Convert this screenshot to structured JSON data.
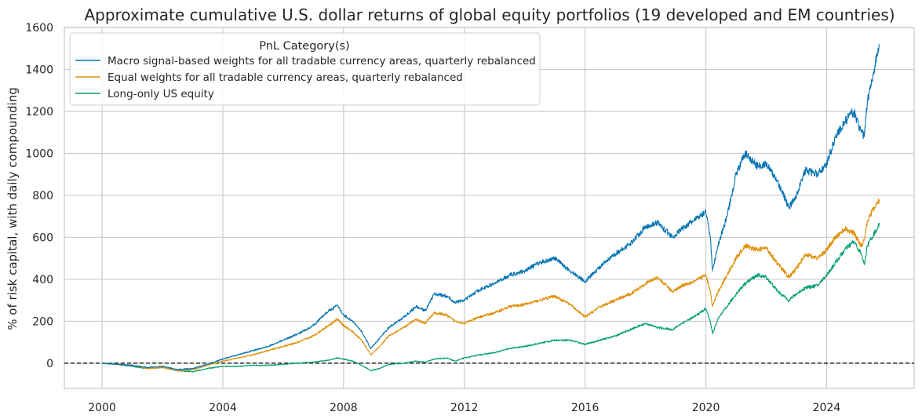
{
  "chart_data": {
    "type": "line",
    "title": "Approximate cumulative U.S. dollar returns of global equity portfolios (19 developed and EM countries)",
    "xlabel": "",
    "ylabel": "% of risk capital, with daily compounding",
    "xlim": [
      1998.75,
      2026.9
    ],
    "ylim": [
      -120,
      1600
    ],
    "x_ticks": [
      2000,
      2004,
      2008,
      2012,
      2016,
      2020,
      2024
    ],
    "x_tick_labels": [
      "2000",
      "2004",
      "2008",
      "2012",
      "2016",
      "2020",
      "2024"
    ],
    "y_ticks": [
      0,
      200,
      400,
      600,
      800,
      1000,
      1200,
      1400,
      1600
    ],
    "y_tick_labels": [
      "0",
      "200",
      "400",
      "600",
      "800",
      "1000",
      "1200",
      "1400",
      "1600"
    ],
    "grid": true,
    "reference_line": {
      "y": 0,
      "style": "dashed",
      "color": "#000000"
    },
    "legend": {
      "title": "PnL Category(s)",
      "position": "top-left"
    },
    "series": [
      {
        "name": "Macro signal-based weights for all tradable currency areas, quarterly rebalanced",
        "color": "#0173b2",
        "x": [
          2000.0,
          2000.5,
          2001.0,
          2001.5,
          2002.0,
          2002.5,
          2003.0,
          2003.5,
          2004.0,
          2004.5,
          2005.0,
          2005.5,
          2006.0,
          2006.5,
          2007.0,
          2007.5,
          2007.8,
          2008.0,
          2008.3,
          2008.6,
          2008.9,
          2009.2,
          2009.5,
          2010.0,
          2010.4,
          2010.7,
          2011.0,
          2011.4,
          2011.7,
          2012.0,
          2012.5,
          2013.0,
          2013.5,
          2014.0,
          2014.5,
          2015.0,
          2015.5,
          2016.0,
          2016.5,
          2017.0,
          2017.5,
          2018.0,
          2018.4,
          2018.9,
          2019.2,
          2019.6,
          2020.0,
          2020.15,
          2020.22,
          2020.4,
          2020.7,
          2021.0,
          2021.3,
          2021.7,
          2022.0,
          2022.4,
          2022.75,
          2023.0,
          2023.3,
          2023.7,
          2024.0,
          2024.3,
          2024.6,
          2024.9,
          2025.15,
          2025.25,
          2025.35,
          2025.5,
          2025.75
        ],
        "values": [
          0,
          -5,
          -10,
          -20,
          -15,
          -30,
          -25,
          -5,
          20,
          40,
          60,
          80,
          110,
          140,
          180,
          250,
          275,
          230,
          200,
          150,
          70,
          120,
          170,
          220,
          270,
          250,
          330,
          320,
          290,
          300,
          350,
          380,
          420,
          440,
          480,
          500,
          440,
          390,
          460,
          520,
          570,
          650,
          670,
          600,
          640,
          680,
          720,
          600,
          440,
          560,
          700,
          900,
          1000,
          940,
          950,
          860,
          740,
          800,
          920,
          900,
          950,
          1080,
          1150,
          1200,
          1100,
          1080,
          1250,
          1350,
          1520
        ]
      },
      {
        "name": "Equal weights for all tradable currency areas, quarterly rebalanced",
        "color": "#de8f05",
        "x": [
          2000.0,
          2000.5,
          2001.0,
          2001.5,
          2002.0,
          2002.5,
          2003.0,
          2003.5,
          2004.0,
          2004.5,
          2005.0,
          2005.5,
          2006.0,
          2006.5,
          2007.0,
          2007.5,
          2007.8,
          2008.0,
          2008.3,
          2008.6,
          2008.9,
          2009.2,
          2009.5,
          2010.0,
          2010.4,
          2010.7,
          2011.0,
          2011.4,
          2011.7,
          2012.0,
          2012.5,
          2013.0,
          2013.5,
          2014.0,
          2014.5,
          2015.0,
          2015.5,
          2016.0,
          2016.5,
          2017.0,
          2017.5,
          2018.0,
          2018.4,
          2018.9,
          2019.2,
          2019.6,
          2020.0,
          2020.15,
          2020.22,
          2020.4,
          2020.7,
          2021.0,
          2021.3,
          2021.7,
          2022.0,
          2022.4,
          2022.75,
          2023.0,
          2023.3,
          2023.7,
          2024.0,
          2024.3,
          2024.6,
          2024.9,
          2025.15,
          2025.25,
          2025.35,
          2025.5,
          2025.75
        ],
        "values": [
          0,
          -5,
          -10,
          -25,
          -20,
          -35,
          -30,
          -10,
          10,
          25,
          40,
          60,
          80,
          100,
          130,
          180,
          210,
          180,
          150,
          110,
          40,
          80,
          130,
          170,
          210,
          190,
          240,
          230,
          200,
          190,
          220,
          240,
          270,
          280,
          300,
          320,
          280,
          220,
          270,
          300,
          330,
          380,
          410,
          340,
          370,
          390,
          420,
          340,
          270,
          340,
          420,
          500,
          560,
          540,
          550,
          470,
          410,
          450,
          520,
          500,
          540,
          600,
          640,
          620,
          560,
          590,
          680,
          720,
          780
        ]
      },
      {
        "name": "Long-only US equity",
        "color": "#029e73",
        "x": [
          2000.0,
          2000.5,
          2001.0,
          2001.5,
          2002.0,
          2002.5,
          2003.0,
          2003.5,
          2004.0,
          2004.5,
          2005.0,
          2005.5,
          2006.0,
          2006.5,
          2007.0,
          2007.5,
          2007.8,
          2008.0,
          2008.3,
          2008.6,
          2008.9,
          2009.2,
          2009.5,
          2010.0,
          2010.4,
          2010.7,
          2011.0,
          2011.4,
          2011.7,
          2012.0,
          2012.5,
          2013.0,
          2013.5,
          2014.0,
          2014.5,
          2015.0,
          2015.5,
          2016.0,
          2016.5,
          2017.0,
          2017.5,
          2018.0,
          2018.4,
          2018.9,
          2019.2,
          2019.6,
          2020.0,
          2020.15,
          2020.22,
          2020.4,
          2020.7,
          2021.0,
          2021.3,
          2021.7,
          2022.0,
          2022.4,
          2022.75,
          2023.0,
          2023.3,
          2023.7,
          2024.0,
          2024.3,
          2024.6,
          2024.9,
          2025.15,
          2025.25,
          2025.35,
          2025.5,
          2025.75
        ],
        "values": [
          0,
          -5,
          -15,
          -25,
          -20,
          -35,
          -40,
          -25,
          -15,
          -15,
          -10,
          -10,
          -5,
          0,
          5,
          15,
          25,
          20,
          10,
          -10,
          -35,
          -25,
          -5,
          0,
          10,
          5,
          20,
          25,
          10,
          25,
          40,
          50,
          70,
          80,
          95,
          110,
          110,
          90,
          110,
          130,
          160,
          190,
          170,
          160,
          190,
          220,
          260,
          200,
          140,
          210,
          270,
          330,
          380,
          420,
          410,
          340,
          300,
          330,
          360,
          370,
          420,
          480,
          540,
          580,
          520,
          470,
          560,
          600,
          660
        ]
      }
    ]
  }
}
